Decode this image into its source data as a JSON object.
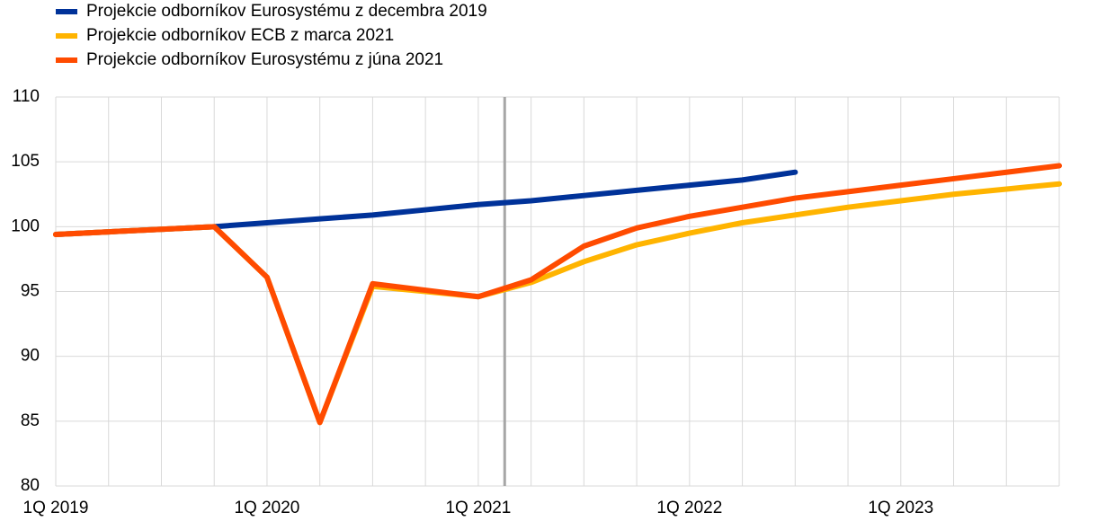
{
  "chart_data": {
    "type": "line",
    "categories": [
      "1Q 2019",
      null,
      null,
      null,
      "1Q 2020",
      null,
      null,
      null,
      "1Q 2021",
      null,
      null,
      null,
      "1Q 2022",
      null,
      null,
      null,
      "1Q 2023",
      null,
      null,
      null
    ],
    "series": [
      {
        "name": "Projekcie odborníkov Eurosystému z decembra 2019",
        "color": "#003299",
        "values": [
          99.4,
          99.6,
          99.8,
          100.0,
          100.3,
          100.6,
          100.9,
          101.3,
          101.7,
          102.0,
          102.4,
          102.8,
          103.2,
          103.6,
          104.2,
          null,
          null,
          null,
          null,
          null
        ]
      },
      {
        "name": "Projekcie odborníkov ECB z marca 2021",
        "color": "#ffb400",
        "values": [
          99.4,
          99.6,
          99.8,
          100.0,
          96.1,
          84.9,
          95.4,
          95.0,
          94.6,
          95.7,
          97.3,
          98.6,
          99.5,
          100.3,
          100.9,
          101.5,
          102.0,
          102.5,
          102.9,
          103.3
        ]
      },
      {
        "name": "Projekcie odborníkov Eurosystému z júna 2021",
        "color": "#ff4b00",
        "values": [
          99.4,
          99.6,
          99.8,
          100.0,
          96.1,
          84.9,
          95.6,
          95.1,
          94.6,
          95.9,
          98.5,
          99.9,
          100.8,
          101.5,
          102.2,
          102.7,
          103.2,
          103.7,
          104.2,
          104.7
        ]
      }
    ],
    "ylim": [
      80,
      110
    ],
    "yticks": [
      80,
      85,
      90,
      95,
      100,
      105,
      110
    ],
    "grid": true
  }
}
